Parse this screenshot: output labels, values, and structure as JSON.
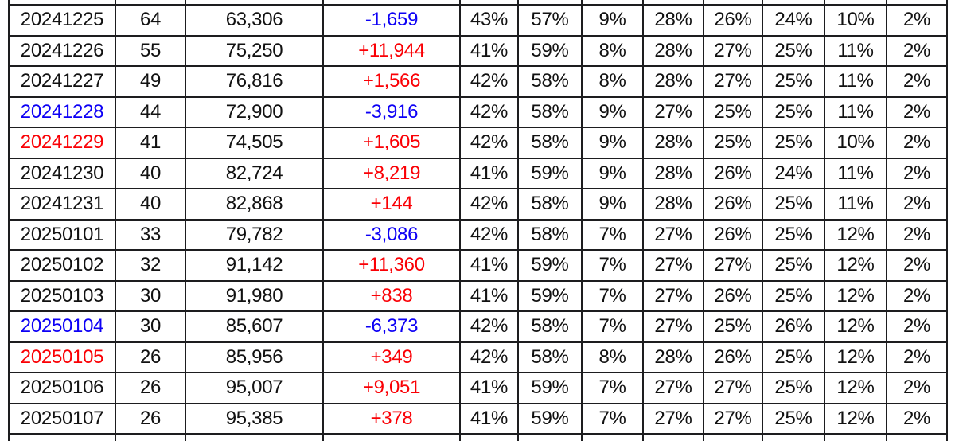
{
  "colors": {
    "text": "#111111",
    "blue": "#0d00f5",
    "red": "#fa0005",
    "grid_line": "#1d1d1f",
    "background": "#ffffff"
  },
  "table": {
    "rows": [
      {
        "date": "20241225",
        "date_color": "text",
        "count": "64",
        "total": "63,306",
        "change": "-1,659",
        "change_color": "blue",
        "percents": [
          "43%",
          "57%",
          "9%",
          "28%",
          "26%",
          "24%",
          "10%",
          "2%"
        ]
      },
      {
        "date": "20241226",
        "date_color": "text",
        "count": "55",
        "total": "75,250",
        "change": "+11,944",
        "change_color": "red",
        "percents": [
          "41%",
          "59%",
          "8%",
          "28%",
          "27%",
          "25%",
          "11%",
          "2%"
        ]
      },
      {
        "date": "20241227",
        "date_color": "text",
        "count": "49",
        "total": "76,816",
        "change": "+1,566",
        "change_color": "red",
        "percents": [
          "42%",
          "58%",
          "8%",
          "28%",
          "27%",
          "25%",
          "11%",
          "2%"
        ]
      },
      {
        "date": "20241228",
        "date_color": "blue",
        "count": "44",
        "total": "72,900",
        "change": "-3,916",
        "change_color": "blue",
        "percents": [
          "42%",
          "58%",
          "9%",
          "27%",
          "25%",
          "25%",
          "11%",
          "2%"
        ]
      },
      {
        "date": "20241229",
        "date_color": "red",
        "count": "41",
        "total": "74,505",
        "change": "+1,605",
        "change_color": "red",
        "percents": [
          "42%",
          "58%",
          "9%",
          "28%",
          "25%",
          "25%",
          "10%",
          "2%"
        ]
      },
      {
        "date": "20241230",
        "date_color": "text",
        "count": "40",
        "total": "82,724",
        "change": "+8,219",
        "change_color": "red",
        "percents": [
          "41%",
          "59%",
          "9%",
          "28%",
          "26%",
          "24%",
          "11%",
          "2%"
        ]
      },
      {
        "date": "20241231",
        "date_color": "text",
        "count": "40",
        "total": "82,868",
        "change": "+144",
        "change_color": "red",
        "percents": [
          "42%",
          "58%",
          "9%",
          "28%",
          "26%",
          "25%",
          "11%",
          "2%"
        ]
      },
      {
        "date": "20250101",
        "date_color": "text",
        "count": "33",
        "total": "79,782",
        "change": "-3,086",
        "change_color": "blue",
        "percents": [
          "42%",
          "58%",
          "7%",
          "27%",
          "26%",
          "25%",
          "12%",
          "2%"
        ]
      },
      {
        "date": "20250102",
        "date_color": "text",
        "count": "32",
        "total": "91,142",
        "change": "+11,360",
        "change_color": "red",
        "percents": [
          "41%",
          "59%",
          "7%",
          "27%",
          "27%",
          "25%",
          "12%",
          "2%"
        ]
      },
      {
        "date": "20250103",
        "date_color": "text",
        "count": "30",
        "total": "91,980",
        "change": "+838",
        "change_color": "red",
        "percents": [
          "41%",
          "59%",
          "7%",
          "27%",
          "26%",
          "25%",
          "12%",
          "2%"
        ]
      },
      {
        "date": "20250104",
        "date_color": "blue",
        "count": "30",
        "total": "85,607",
        "change": "-6,373",
        "change_color": "blue",
        "percents": [
          "42%",
          "58%",
          "7%",
          "27%",
          "25%",
          "26%",
          "12%",
          "2%"
        ]
      },
      {
        "date": "20250105",
        "date_color": "red",
        "count": "26",
        "total": "85,956",
        "change": "+349",
        "change_color": "red",
        "percents": [
          "42%",
          "58%",
          "8%",
          "28%",
          "26%",
          "25%",
          "12%",
          "2%"
        ]
      },
      {
        "date": "20250106",
        "date_color": "text",
        "count": "26",
        "total": "95,007",
        "change": "+9,051",
        "change_color": "red",
        "percents": [
          "41%",
          "59%",
          "7%",
          "27%",
          "27%",
          "25%",
          "12%",
          "2%"
        ]
      },
      {
        "date": "20250107",
        "date_color": "text",
        "count": "26",
        "total": "95,385",
        "change": "+378",
        "change_color": "red",
        "percents": [
          "41%",
          "59%",
          "7%",
          "27%",
          "27%",
          "25%",
          "12%",
          "2%"
        ]
      }
    ]
  }
}
